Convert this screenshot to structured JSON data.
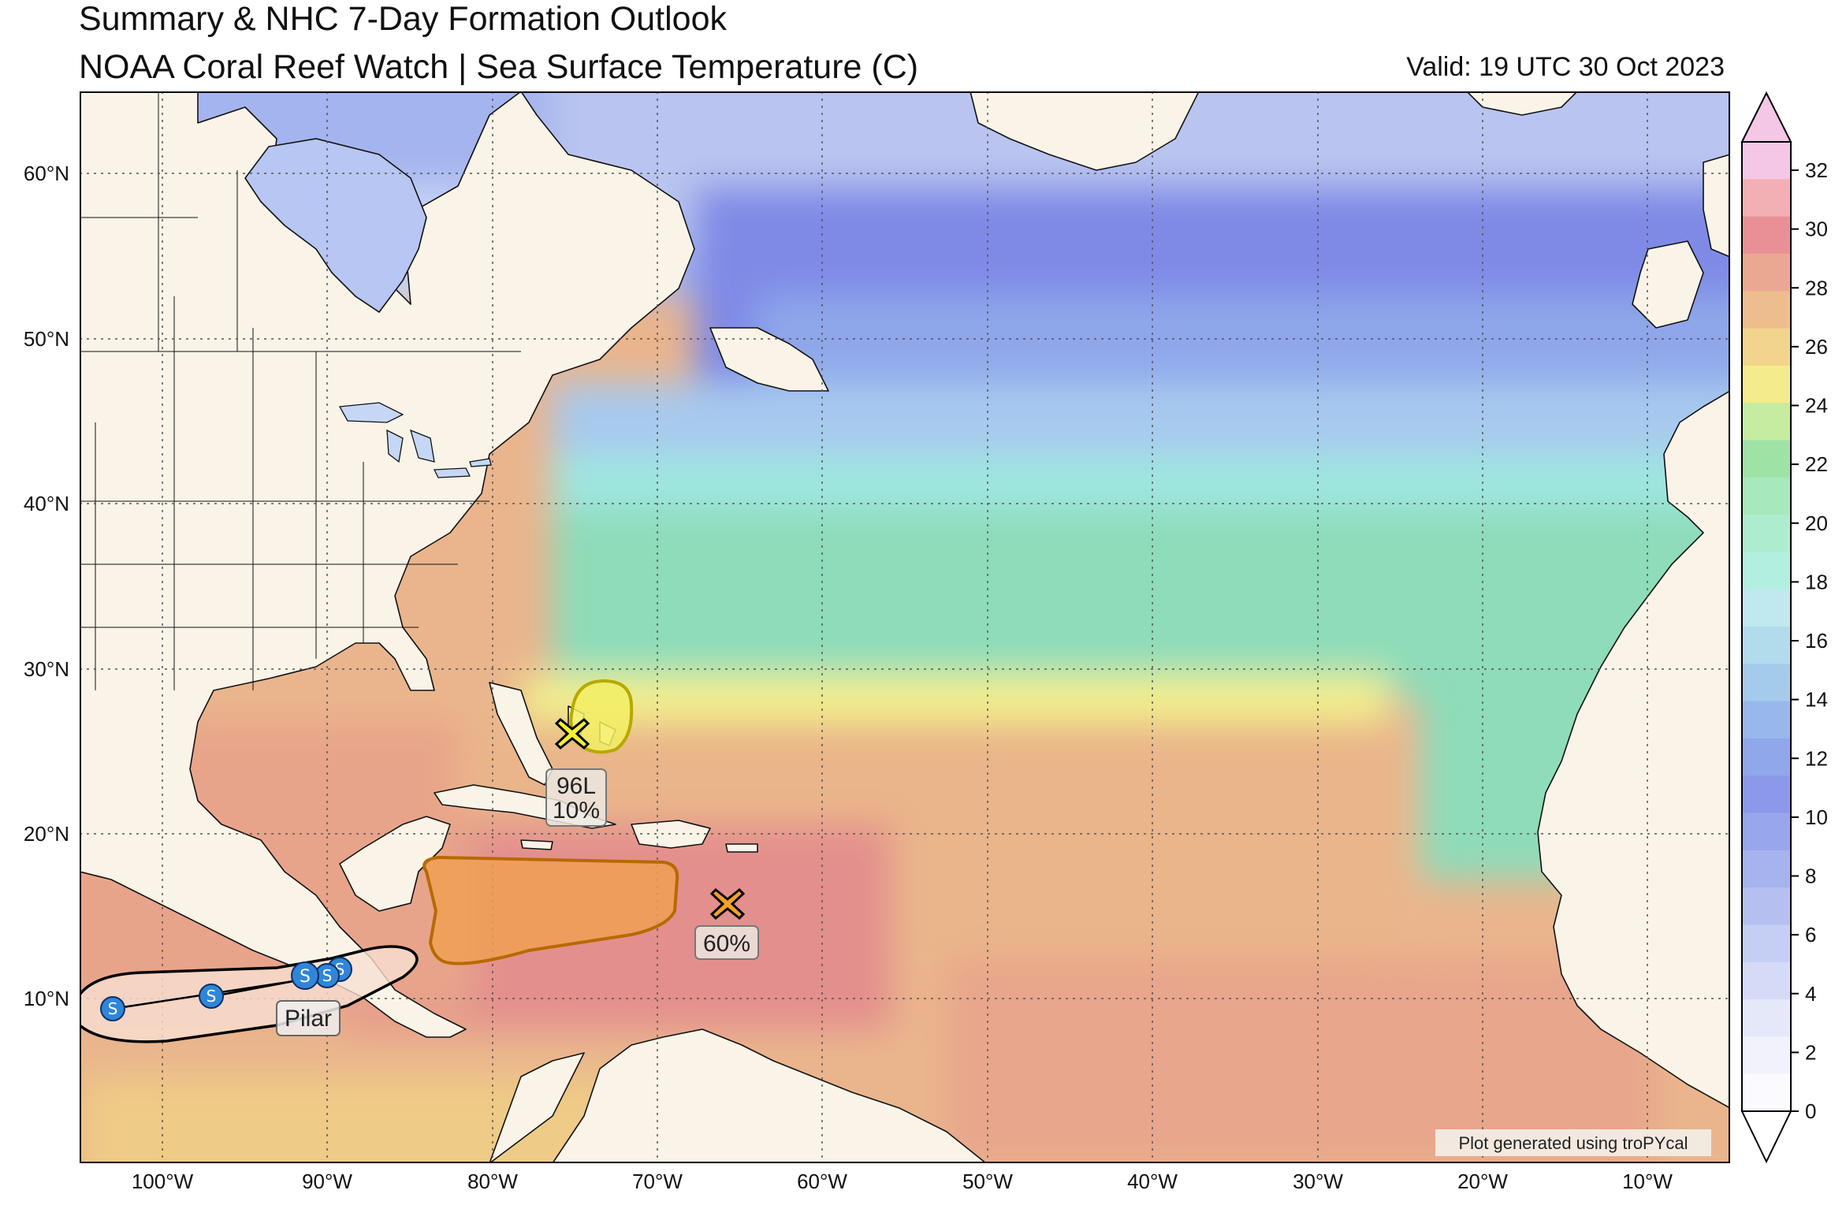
{
  "header": {
    "title_line1": "Summary & NHC 7-Day Formation Outlook",
    "title_line2": "NOAA Coral Reef Watch | Sea Surface Temperature (C)",
    "valid": "Valid: 19 UTC 30 Oct 2023"
  },
  "map": {
    "lat_labels": [
      "60°N",
      "50°N",
      "40°N",
      "30°N",
      "20°N",
      "10°N"
    ],
    "lon_labels": [
      "100°W",
      "90°W",
      "80°W",
      "70°W",
      "60°W",
      "50°W",
      "40°W",
      "30°W",
      "20°W",
      "10°W"
    ],
    "colors": {
      "land": "#faf3e8",
      "sst_cold": "#7b87e6",
      "sst_cool": "#a9c1ef",
      "sst_mild": "#8fdcc2",
      "sst_warm_yellow": "#f4ef8c",
      "sst_warm_orange": "#e8b586",
      "sst_hot": "#e08d8a",
      "outlook_low": "#f2ee64",
      "outlook_high": "#f0a050",
      "storm_marker": "#2f86d8"
    },
    "areas": [
      {
        "id": "96L",
        "label_line1": "96L",
        "label_line2": "10%",
        "risk": "low",
        "marker_icon": "x-icon"
      },
      {
        "id": "carib",
        "label_line1": "60%",
        "risk": "high",
        "marker_icon": "x-icon"
      }
    ],
    "storm": {
      "name": "Pilar",
      "symbol": "S",
      "icon": "storm-symbol-icon"
    },
    "credit": "Plot generated using troPYcal"
  },
  "colorbar": {
    "ticks": [
      "32",
      "30",
      "28",
      "26",
      "24",
      "22",
      "20",
      "18",
      "16",
      "14",
      "12",
      "10",
      "8",
      "6",
      "4",
      "2",
      "0"
    ],
    "bands": [
      "#f4c7e6",
      "#f2b0b4",
      "#e99096",
      "#eaa791",
      "#eebd8d",
      "#f2d48c",
      "#f4eb8c",
      "#c6eca0",
      "#9ee3a5",
      "#a7e8bc",
      "#aeeccf",
      "#b3efe0",
      "#bfe9ee",
      "#b2dcec",
      "#a5cbeb",
      "#98b7eb",
      "#90a7ea",
      "#8c99ea",
      "#98a6ec",
      "#a6b3ee",
      "#b5c0f0",
      "#c5cef3",
      "#d5daf6",
      "#e5e8f9",
      "#f1f2fc",
      "#fbfbff"
    ]
  }
}
